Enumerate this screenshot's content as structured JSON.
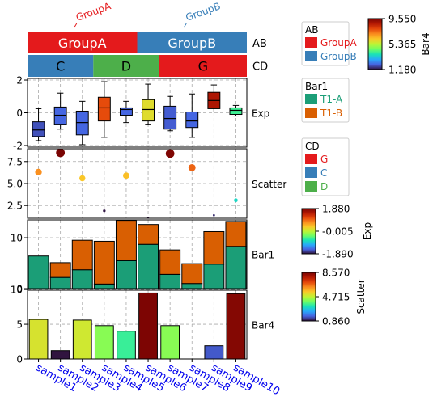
{
  "chart_data": {
    "type": "heatmap",
    "samples": [
      "sample1",
      "sample2",
      "sample3",
      "sample4",
      "sample5",
      "sample6",
      "sample7",
      "sample8",
      "sample9",
      "sample10"
    ],
    "annotations": {
      "AB": {
        "label": "AB",
        "groups": [
          {
            "name": "GroupA",
            "from": 0,
            "to": 4,
            "color": "#e41a1c"
          },
          {
            "name": "GroupB",
            "from": 5,
            "to": 9,
            "color": "#377eb8"
          }
        ],
        "tilted_labels": [
          "GroupA",
          "GroupB"
        ]
      },
      "CD": {
        "label": "CD",
        "groups": [
          {
            "name": "C",
            "from": 0,
            "to": 2,
            "color": "#377eb8"
          },
          {
            "name": "D",
            "from": 3,
            "to": 5,
            "color": "#4daf4a"
          },
          {
            "name": "G",
            "from": 6,
            "to": 9,
            "color": "#e41a1c"
          }
        ]
      }
    },
    "tracks": [
      {
        "name": "Exp",
        "type": "box",
        "ylim": [
          -2.1,
          2.1
        ],
        "yticks": [
          -2,
          0,
          2
        ],
        "boxes": [
          {
            "min": -1.7,
            "q1": -1.45,
            "median": -1.05,
            "q3": -0.55,
            "max": 0.25,
            "color": -1.6
          },
          {
            "min": -1.0,
            "q1": -0.7,
            "median": -0.15,
            "q3": 0.35,
            "max": 1.2,
            "color": -1.5
          },
          {
            "min": -1.95,
            "q1": -1.35,
            "median": -0.6,
            "q3": 0.1,
            "max": 0.7,
            "color": -1.5
          },
          {
            "min": -1.5,
            "q1": -0.5,
            "median": 0.3,
            "q3": 0.95,
            "max": 1.9,
            "color": 1.1
          },
          {
            "min": -0.6,
            "q1": -0.15,
            "median": 0.2,
            "q3": 0.3,
            "max": 0.7,
            "color": -1.5
          },
          {
            "min": -0.7,
            "q1": -0.5,
            "median": 0.2,
            "q3": 0.8,
            "max": 1.75,
            "color": 0.2
          },
          {
            "min": -1.1,
            "q1": -1.0,
            "median": -0.35,
            "q3": 0.4,
            "max": 1.0,
            "color": -1.55
          },
          {
            "min": -1.5,
            "q1": -0.9,
            "median": -0.5,
            "q3": 0.05,
            "max": 1.15,
            "color": -1.5
          },
          {
            "min": 0.05,
            "q1": 0.25,
            "median": 0.75,
            "q3": 1.25,
            "max": 1.7,
            "color": 1.55
          },
          {
            "min": -0.2,
            "q1": -0.1,
            "median": 0.15,
            "q3": 0.3,
            "max": 0.45,
            "color": -0.6
          }
        ]
      },
      {
        "name": "Scatter",
        "type": "scatter",
        "ylim": [
          1.05,
          8.95
        ],
        "yticks": [
          2.5,
          5.0,
          7.5
        ],
        "yticklabels": [
          "2.5",
          "5.0",
          "7.5"
        ],
        "values": [
          6.3,
          8.5,
          5.6,
          1.9,
          5.9,
          1.1,
          8.4,
          6.8,
          1.4,
          3.1
        ],
        "colors": [
          6.2,
          8.57,
          5.5,
          0.9,
          5.6,
          0.86,
          8.5,
          6.7,
          1.1,
          3.0
        ]
      },
      {
        "name": "Bar1",
        "type": "stacked_bar",
        "ylim": [
          0,
          13.5
        ],
        "yticks": [
          0,
          10
        ],
        "series": [
          {
            "name": "T1-A",
            "color": "#1b9e77",
            "values": [
              6.4,
              2.2,
              3.7,
              0.9,
              5.5,
              8.7,
              2.8,
              1.0,
              4.8,
              8.3
            ]
          },
          {
            "name": "T1-B",
            "color": "#d95f02",
            "values": [
              0,
              2.9,
              5.8,
              8.4,
              7.9,
              3.9,
              4.8,
              3.9,
              6.4,
              4.9
            ]
          }
        ]
      },
      {
        "name": "Bar4",
        "type": "bar",
        "ylim": [
          0,
          9.9
        ],
        "yticks": [
          0,
          5,
          10
        ],
        "values": [
          5.7,
          1.2,
          5.6,
          4.8,
          4.0,
          9.5,
          4.8,
          0,
          1.9,
          9.4
        ],
        "colors": [
          5.7,
          1.2,
          5.6,
          4.8,
          4.0,
          9.5,
          4.8,
          0,
          1.9,
          9.4
        ]
      }
    ],
    "legends": [
      {
        "title": "AB",
        "items": [
          {
            "label": "GroupA",
            "color": "#e41a1c"
          },
          {
            "label": "GroupB",
            "color": "#377eb8"
          }
        ]
      },
      {
        "title": "Bar1",
        "items": [
          {
            "label": "T1-A",
            "color": "#1b9e77"
          },
          {
            "label": "T1-B",
            "color": "#d95f02"
          }
        ]
      },
      {
        "title": "CD",
        "items": [
          {
            "label": "G",
            "color": "#e41a1c"
          },
          {
            "label": "C",
            "color": "#377eb8"
          },
          {
            "label": "D",
            "color": "#4daf4a"
          }
        ]
      }
    ],
    "colorbars": [
      {
        "title": "Bar4",
        "min": 1.18,
        "max": 9.55,
        "ticks": [
          "9.550",
          "5.365",
          "1.180"
        ]
      },
      {
        "title": "Exp",
        "min": -1.89,
        "max": 1.88,
        "ticks": [
          "1.880",
          "-0.005",
          "-1.890"
        ]
      },
      {
        "title": "Scatter",
        "min": 0.86,
        "max": 8.57,
        "ticks": [
          "8.570",
          "4.715",
          "0.860"
        ]
      }
    ],
    "grid": true
  }
}
